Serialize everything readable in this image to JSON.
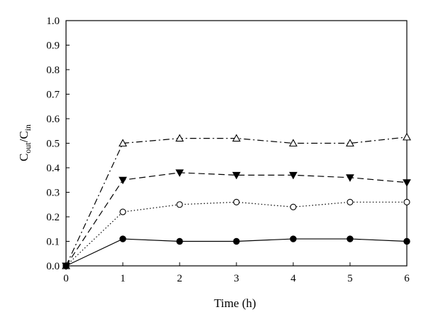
{
  "chart_data": {
    "type": "line",
    "xlabel": "Time (h)",
    "ylabel": {
      "main": "C",
      "sub1": "out",
      "sep": "/",
      "sub2": "in"
    },
    "xlim": [
      0,
      6
    ],
    "ylim": [
      0,
      1.0
    ],
    "xticks": [
      "0",
      "1",
      "2",
      "3",
      "4",
      "5",
      "6"
    ],
    "yticks": [
      "0.0",
      "0.1",
      "0.2",
      "0.3",
      "0.4",
      "0.5",
      "0.6",
      "0.7",
      "0.8",
      "0.9",
      "1.0"
    ],
    "grid": false,
    "x": [
      0,
      1,
      2,
      3,
      4,
      5,
      6
    ],
    "series": [
      {
        "marker": "open-triangle",
        "line_style": "dash-dot",
        "values": [
          0,
          0.5,
          0.52,
          0.52,
          0.5,
          0.5,
          0.525
        ]
      },
      {
        "marker": "filled-triangle-down",
        "line_style": "dashed",
        "values": [
          0,
          0.35,
          0.38,
          0.37,
          0.37,
          0.36,
          0.34
        ]
      },
      {
        "marker": "open-circle",
        "line_style": "dotted",
        "values": [
          0,
          0.22,
          0.25,
          0.26,
          0.24,
          0.26,
          0.26
        ]
      },
      {
        "marker": "filled-circle",
        "line_style": "solid",
        "values": [
          0,
          0.11,
          0.1,
          0.1,
          0.11,
          0.11,
          0.1
        ]
      }
    ]
  }
}
